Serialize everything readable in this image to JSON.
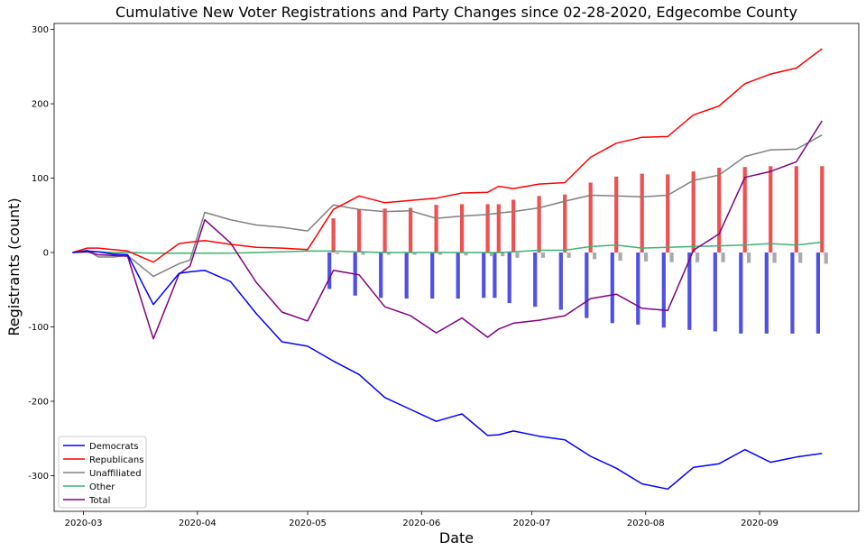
{
  "chart_data": {
    "type": "line",
    "title": "Cumulative New Voter Registrations and Party Changes since 02-28-2020, Edgecombe County",
    "xlabel": "Date",
    "ylabel": "Registrants (count)",
    "x_tick_labels": [
      "2020-03",
      "2020-04",
      "2020-05",
      "2020-06",
      "2020-07",
      "2020-08",
      "2020-09"
    ],
    "x_tick_dates": [
      "2020-03-01",
      "2020-04-01",
      "2020-05-01",
      "2020-06-01",
      "2020-07-01",
      "2020-08-01",
      "2020-09-01"
    ],
    "y_ticks": [
      -300,
      -200,
      -100,
      0,
      100,
      200,
      300
    ],
    "xlim": [
      "2020-02-22",
      "2020-09-28"
    ],
    "ylim": [
      -348,
      308
    ],
    "grid": false,
    "legend_position": "lower-left",
    "dates": [
      "2020-02-27",
      "2020-03-02",
      "2020-03-05",
      "2020-03-09",
      "2020-03-13",
      "2020-03-20",
      "2020-03-27",
      "2020-03-30",
      "2020-04-03",
      "2020-04-10",
      "2020-04-17",
      "2020-04-24",
      "2020-05-01",
      "2020-05-08",
      "2020-05-15",
      "2020-05-22",
      "2020-05-29",
      "2020-06-05",
      "2020-06-12",
      "2020-06-19",
      "2020-06-22",
      "2020-06-26",
      "2020-07-03",
      "2020-07-10",
      "2020-07-17",
      "2020-07-24",
      "2020-07-31",
      "2020-08-07",
      "2020-08-14",
      "2020-08-21",
      "2020-08-28",
      "2020-09-04",
      "2020-09-11",
      "2020-09-18"
    ],
    "series": [
      {
        "name": "Democrats",
        "color": "#0000ff",
        "values": [
          0,
          2,
          1,
          -2,
          -3,
          -70,
          -28,
          -26,
          -24,
          -39,
          -82,
          -120,
          -126,
          -146,
          -164,
          -195,
          -211,
          -227,
          -217,
          -246,
          -245,
          -240,
          -247,
          -252,
          -274,
          -290,
          -311,
          -318,
          -289,
          -284,
          -265,
          -282,
          -275,
          -270
        ]
      },
      {
        "name": "Republicans",
        "color": "#ff0000",
        "values": [
          0,
          6,
          6,
          4,
          2,
          -13,
          12,
          14,
          16,
          11,
          7,
          6,
          4,
          58,
          76,
          67,
          70,
          73,
          80,
          81,
          89,
          86,
          92,
          94,
          128,
          147,
          155,
          156,
          185,
          197,
          227,
          240,
          248,
          274
        ]
      },
      {
        "name": "Unaffiliated",
        "color": "#808080",
        "values": [
          0,
          3,
          -6,
          -6,
          -4,
          -32,
          -15,
          -10,
          54,
          44,
          37,
          34,
          29,
          64,
          58,
          55,
          56,
          46,
          49,
          51,
          53,
          55,
          60,
          69,
          77,
          76,
          75,
          77,
          97,
          104,
          129,
          138,
          139,
          158
        ]
      },
      {
        "name": "Other",
        "color": "#3cb371",
        "values": [
          0,
          1,
          1,
          0,
          0,
          -1,
          -1,
          -1,
          -1,
          -1,
          0,
          1,
          2,
          2,
          1,
          0,
          0,
          0,
          0,
          0,
          0,
          1,
          3,
          3,
          8,
          10,
          6,
          7,
          8,
          9,
          10,
          12,
          10,
          14
        ]
      },
      {
        "name": "Total",
        "color": "#800080",
        "values": [
          0,
          1,
          -3,
          -4,
          -5,
          -116,
          -29,
          -18,
          44,
          13,
          -40,
          -80,
          -92,
          -24,
          -30,
          -73,
          -85,
          -108,
          -88,
          -114,
          -103,
          -95,
          -91,
          -85,
          -62,
          -56,
          -75,
          -78,
          3,
          25,
          101,
          109,
          122,
          177
        ]
      }
    ],
    "bars": {
      "dates": [
        "2020-05-08",
        "2020-05-15",
        "2020-05-22",
        "2020-05-29",
        "2020-06-05",
        "2020-06-12",
        "2020-06-19",
        "2020-06-22",
        "2020-06-26",
        "2020-07-03",
        "2020-07-10",
        "2020-07-17",
        "2020-07-24",
        "2020-07-31",
        "2020-08-07",
        "2020-08-14",
        "2020-08-21",
        "2020-08-28",
        "2020-09-04",
        "2020-09-11",
        "2020-09-18"
      ],
      "series": [
        {
          "name": "Republicans",
          "color": "#f05050",
          "values": [
            46,
            58,
            59,
            60,
            64,
            65,
            65,
            65,
            71,
            76,
            78,
            94,
            102,
            106,
            105,
            109,
            114,
            115,
            116,
            116,
            116
          ]
        },
        {
          "name": "Democrats",
          "color": "#5050e6",
          "values": [
            -49,
            -58,
            -61,
            -62,
            -62,
            -62,
            -61,
            -61,
            -68,
            -73,
            -77,
            -88,
            -95,
            -97,
            -101,
            -104,
            -106,
            -109,
            -109,
            -109,
            -109
          ]
        },
        {
          "name": "Unaffiliated",
          "color": "#aaaaaa",
          "values": [
            -2,
            -3,
            -3,
            -3,
            -3,
            -4,
            -5,
            -5,
            -7,
            -7,
            -7,
            -9,
            -11,
            -12,
            -13,
            -13,
            -13,
            -14,
            -14,
            -14,
            -15
          ]
        }
      ]
    }
  },
  "legend": {
    "items": [
      "Democrats",
      "Republicans",
      "Unaffiliated",
      "Other",
      "Total"
    ]
  }
}
